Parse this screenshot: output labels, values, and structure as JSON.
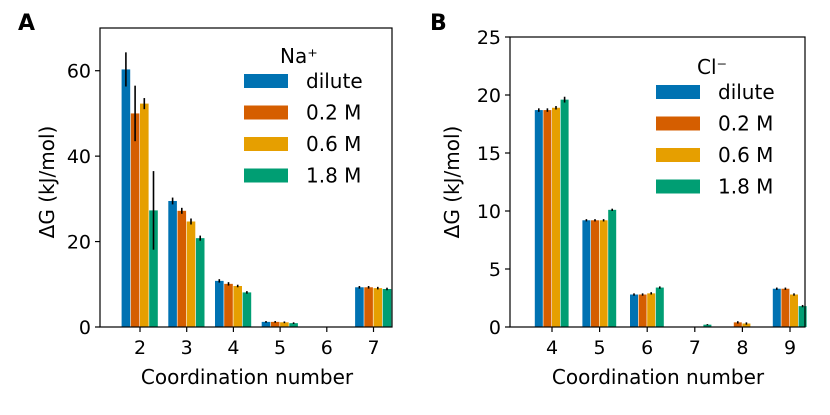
{
  "chart_data": [
    {
      "type": "bar",
      "panel_label": "A",
      "legend_title": "Na⁺",
      "xlabel": "Coordination number",
      "ylabel": "ΔG (kJ/mol)",
      "categories": [
        "2",
        "3",
        "4",
        "5",
        "6",
        "7"
      ],
      "ylim": [
        0,
        70
      ],
      "yticks": [
        0,
        20,
        40,
        60
      ],
      "legend_position": "top-right",
      "series": [
        {
          "name": "dilute",
          "color": "#0072B2",
          "values": [
            60.3,
            29.5,
            10.8,
            1.2,
            null,
            9.3
          ],
          "errors": [
            4.0,
            0.8,
            0.4,
            0.2,
            null,
            0.3
          ]
        },
        {
          "name": "0.2 M",
          "color": "#D55E00",
          "values": [
            50.0,
            27.2,
            10.1,
            1.2,
            null,
            9.3
          ],
          "errors": [
            6.5,
            0.7,
            0.4,
            0.2,
            null,
            0.3
          ]
        },
        {
          "name": "0.6 M",
          "color": "#E69F00",
          "values": [
            52.3,
            24.7,
            9.6,
            1.1,
            null,
            9.1
          ],
          "errors": [
            1.3,
            0.7,
            0.3,
            0.2,
            null,
            0.3
          ]
        },
        {
          "name": "1.8 M",
          "color": "#009E73",
          "values": [
            27.3,
            20.8,
            8.1,
            0.9,
            null,
            8.9
          ],
          "errors": [
            9.2,
            0.6,
            0.3,
            0.2,
            null,
            0.3
          ]
        }
      ]
    },
    {
      "type": "bar",
      "panel_label": "B",
      "legend_title": "Cl⁻",
      "xlabel": "Coordination number",
      "ylabel": "ΔG (kJ/mol)",
      "categories": [
        "4",
        "5",
        "6",
        "7",
        "8",
        "9"
      ],
      "ylim": [
        0,
        25
      ],
      "yticks": [
        0,
        5,
        10,
        15,
        20,
        25
      ],
      "legend_position": "top-right",
      "series": [
        {
          "name": "dilute",
          "color": "#0072B2",
          "values": [
            18.7,
            9.2,
            2.8,
            null,
            null,
            3.3
          ],
          "errors": [
            0.15,
            0.1,
            0.1,
            null,
            null,
            0.1
          ]
        },
        {
          "name": "0.2 M",
          "color": "#D55E00",
          "values": [
            18.7,
            9.2,
            2.8,
            null,
            0.4,
            3.3
          ],
          "errors": [
            0.15,
            0.1,
            0.1,
            null,
            0.1,
            0.1
          ]
        },
        {
          "name": "0.6 M",
          "color": "#E69F00",
          "values": [
            18.9,
            9.2,
            2.9,
            null,
            0.3,
            2.8
          ],
          "errors": [
            0.15,
            0.1,
            0.1,
            null,
            0.1,
            0.1
          ]
        },
        {
          "name": "1.8 M",
          "color": "#009E73",
          "values": [
            19.6,
            10.1,
            3.4,
            0.2,
            null,
            1.8
          ],
          "errors": [
            0.25,
            0.1,
            0.1,
            0.05,
            null,
            0.1
          ]
        }
      ]
    }
  ]
}
